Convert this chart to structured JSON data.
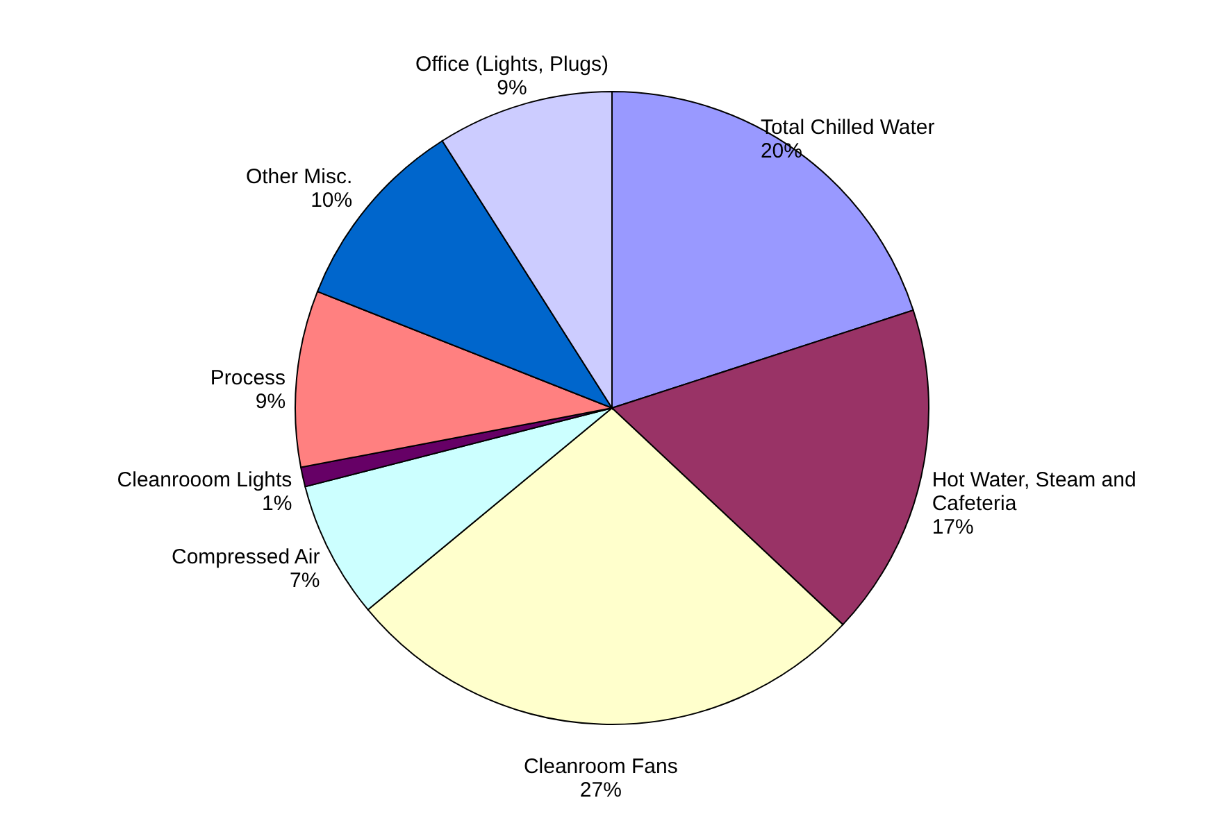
{
  "chart_data": {
    "type": "pie",
    "categories": [
      "Total Chilled Water",
      "Hot Water, Steam and Cafeteria",
      "Cleanroom Fans",
      "Compressed Air",
      "Cleanrooom Lights",
      "Process",
      "Other Misc.",
      "Office (Lights, Plugs)"
    ],
    "values": [
      20,
      17,
      27,
      7,
      1,
      9,
      10,
      9
    ],
    "value_labels": [
      "20%",
      "17%",
      "27%",
      "7%",
      "1%",
      "9%",
      "10%",
      "9%"
    ],
    "colors": [
      "#9999ff",
      "#993366",
      "#ffffcc",
      "#ccffff",
      "#660066",
      "#ff8080",
      "#0066cc",
      "#ccccff"
    ]
  }
}
